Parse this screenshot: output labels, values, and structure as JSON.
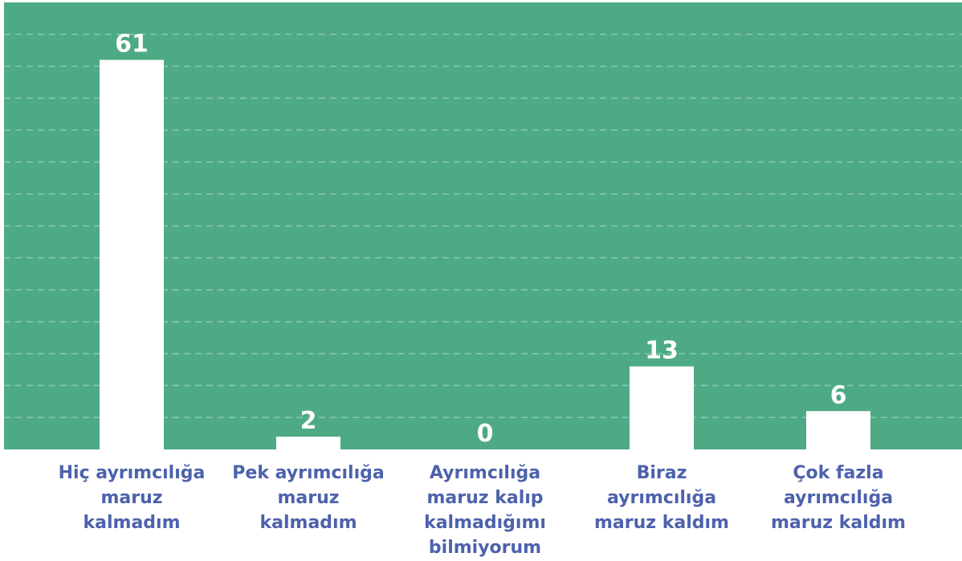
{
  "chart_data": {
    "type": "bar",
    "categories": [
      "Hiç ayrımcılığa maruz kalmadım",
      "Pek ayrımcılığa maruz kalmadım",
      "Ayrımcılığa maruz kalıp kalmadığımı bilmiyorum",
      "Biraz ayrımcılığa maruz kaldım",
      "Çok fazla ayrımcılığa maruz kaldım"
    ],
    "values": [
      61,
      2,
      0,
      13,
      6
    ],
    "color": "#ffffff",
    "background": "#4daa85",
    "label_color": "#4d62ac",
    "ylim": [
      0,
      70
    ],
    "yticks": [
      5,
      10,
      15,
      20,
      25,
      30,
      35,
      40,
      45,
      50,
      55,
      60,
      65
    ],
    "grid": true
  }
}
